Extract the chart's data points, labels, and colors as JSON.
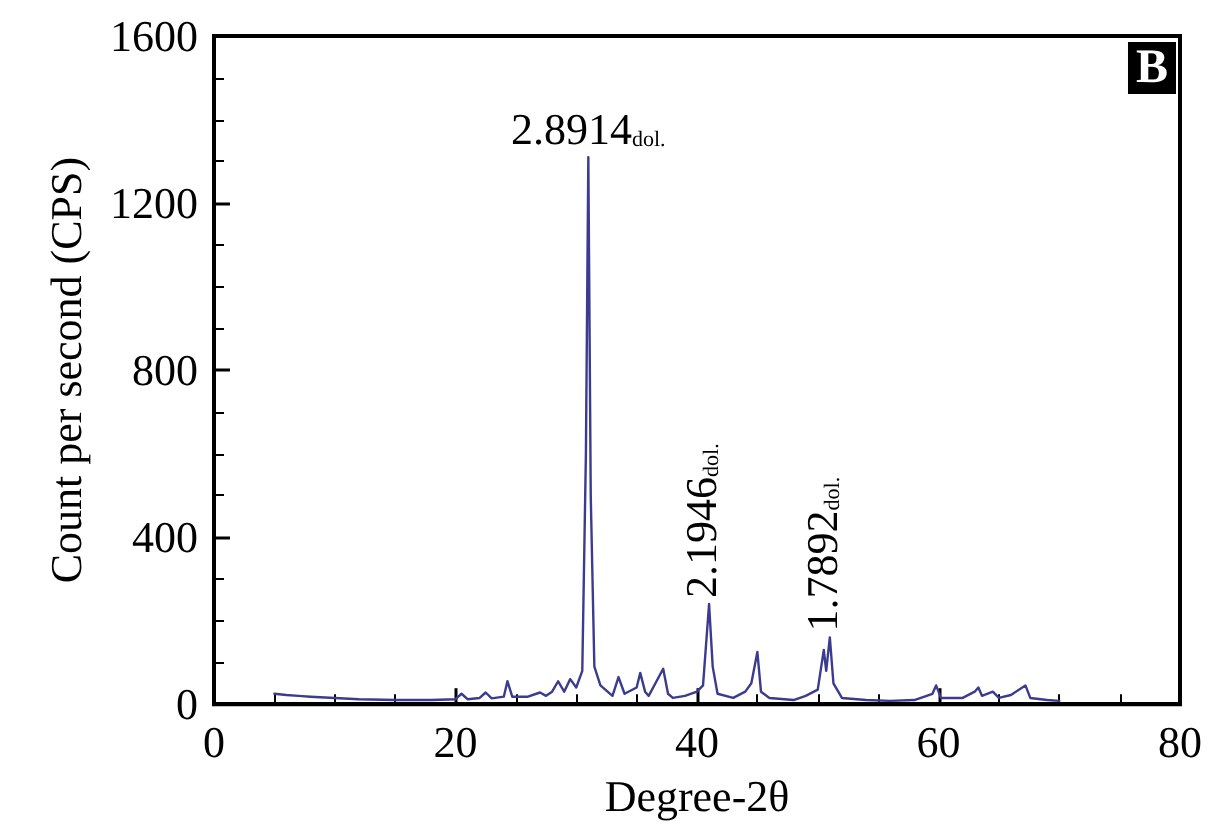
{
  "chart_data": {
    "type": "line",
    "xlabel": "Degree-2θ",
    "ylabel": "Count per second (CPS)",
    "xlim": [
      0,
      80
    ],
    "xticks": [
      0,
      20,
      40,
      60,
      80
    ],
    "ylim": [
      0,
      1600
    ],
    "yticks": [
      0,
      400,
      800,
      1200,
      1600
    ],
    "grid": false,
    "marker": "none",
    "line_style": "solid",
    "annotations": [
      {
        "text": "2.8914$_{dol.}$",
        "x": 31,
        "y": 1310
      },
      {
        "text": "2.1946$_{dol.}$",
        "x": 41,
        "y": 240
      },
      {
        "text": "1.7892$_{dol.}$",
        "x": 51,
        "y": 160
      },
      "B"
    ],
    "series": [
      {
        "color": "#3b3b8f",
        "x": [
          5,
          6,
          7,
          8,
          10,
          12,
          15,
          18,
          20,
          20.5,
          21,
          22,
          22.5,
          23,
          24,
          24.3,
          24.7,
          26,
          27,
          27.5,
          28,
          28.5,
          29,
          29.5,
          30,
          30.5,
          30.8,
          31,
          31.2,
          31.5,
          32,
          33,
          33.5,
          34,
          35,
          35.3,
          35.7,
          36,
          37.2,
          37.6,
          38,
          39,
          40,
          40.5,
          41,
          41.3,
          41.7,
          43,
          44,
          44.5,
          45,
          45.3,
          46,
          48,
          49,
          50,
          50.5,
          50.7,
          51,
          51.3,
          52,
          54,
          56,
          58,
          59.5,
          59.8,
          60.2,
          62,
          63,
          63.3,
          63.6,
          64.5,
          65,
          66,
          67.2,
          67.6,
          69,
          70
        ],
        "values": [
          25,
          22,
          20,
          18,
          15,
          12,
          10,
          10,
          12,
          25,
          12,
          15,
          28,
          14,
          18,
          55,
          18,
          18,
          28,
          20,
          30,
          55,
          30,
          60,
          40,
          80,
          600,
          1310,
          500,
          90,
          45,
          20,
          65,
          25,
          40,
          75,
          30,
          20,
          85,
          25,
          15,
          20,
          30,
          45,
          240,
          90,
          25,
          15,
          30,
          50,
          125,
          30,
          15,
          10,
          20,
          35,
          130,
          80,
          160,
          50,
          15,
          10,
          8,
          10,
          25,
          45,
          15,
          15,
          30,
          40,
          20,
          30,
          15,
          22,
          45,
          15,
          10,
          8
        ]
      }
    ]
  }
}
